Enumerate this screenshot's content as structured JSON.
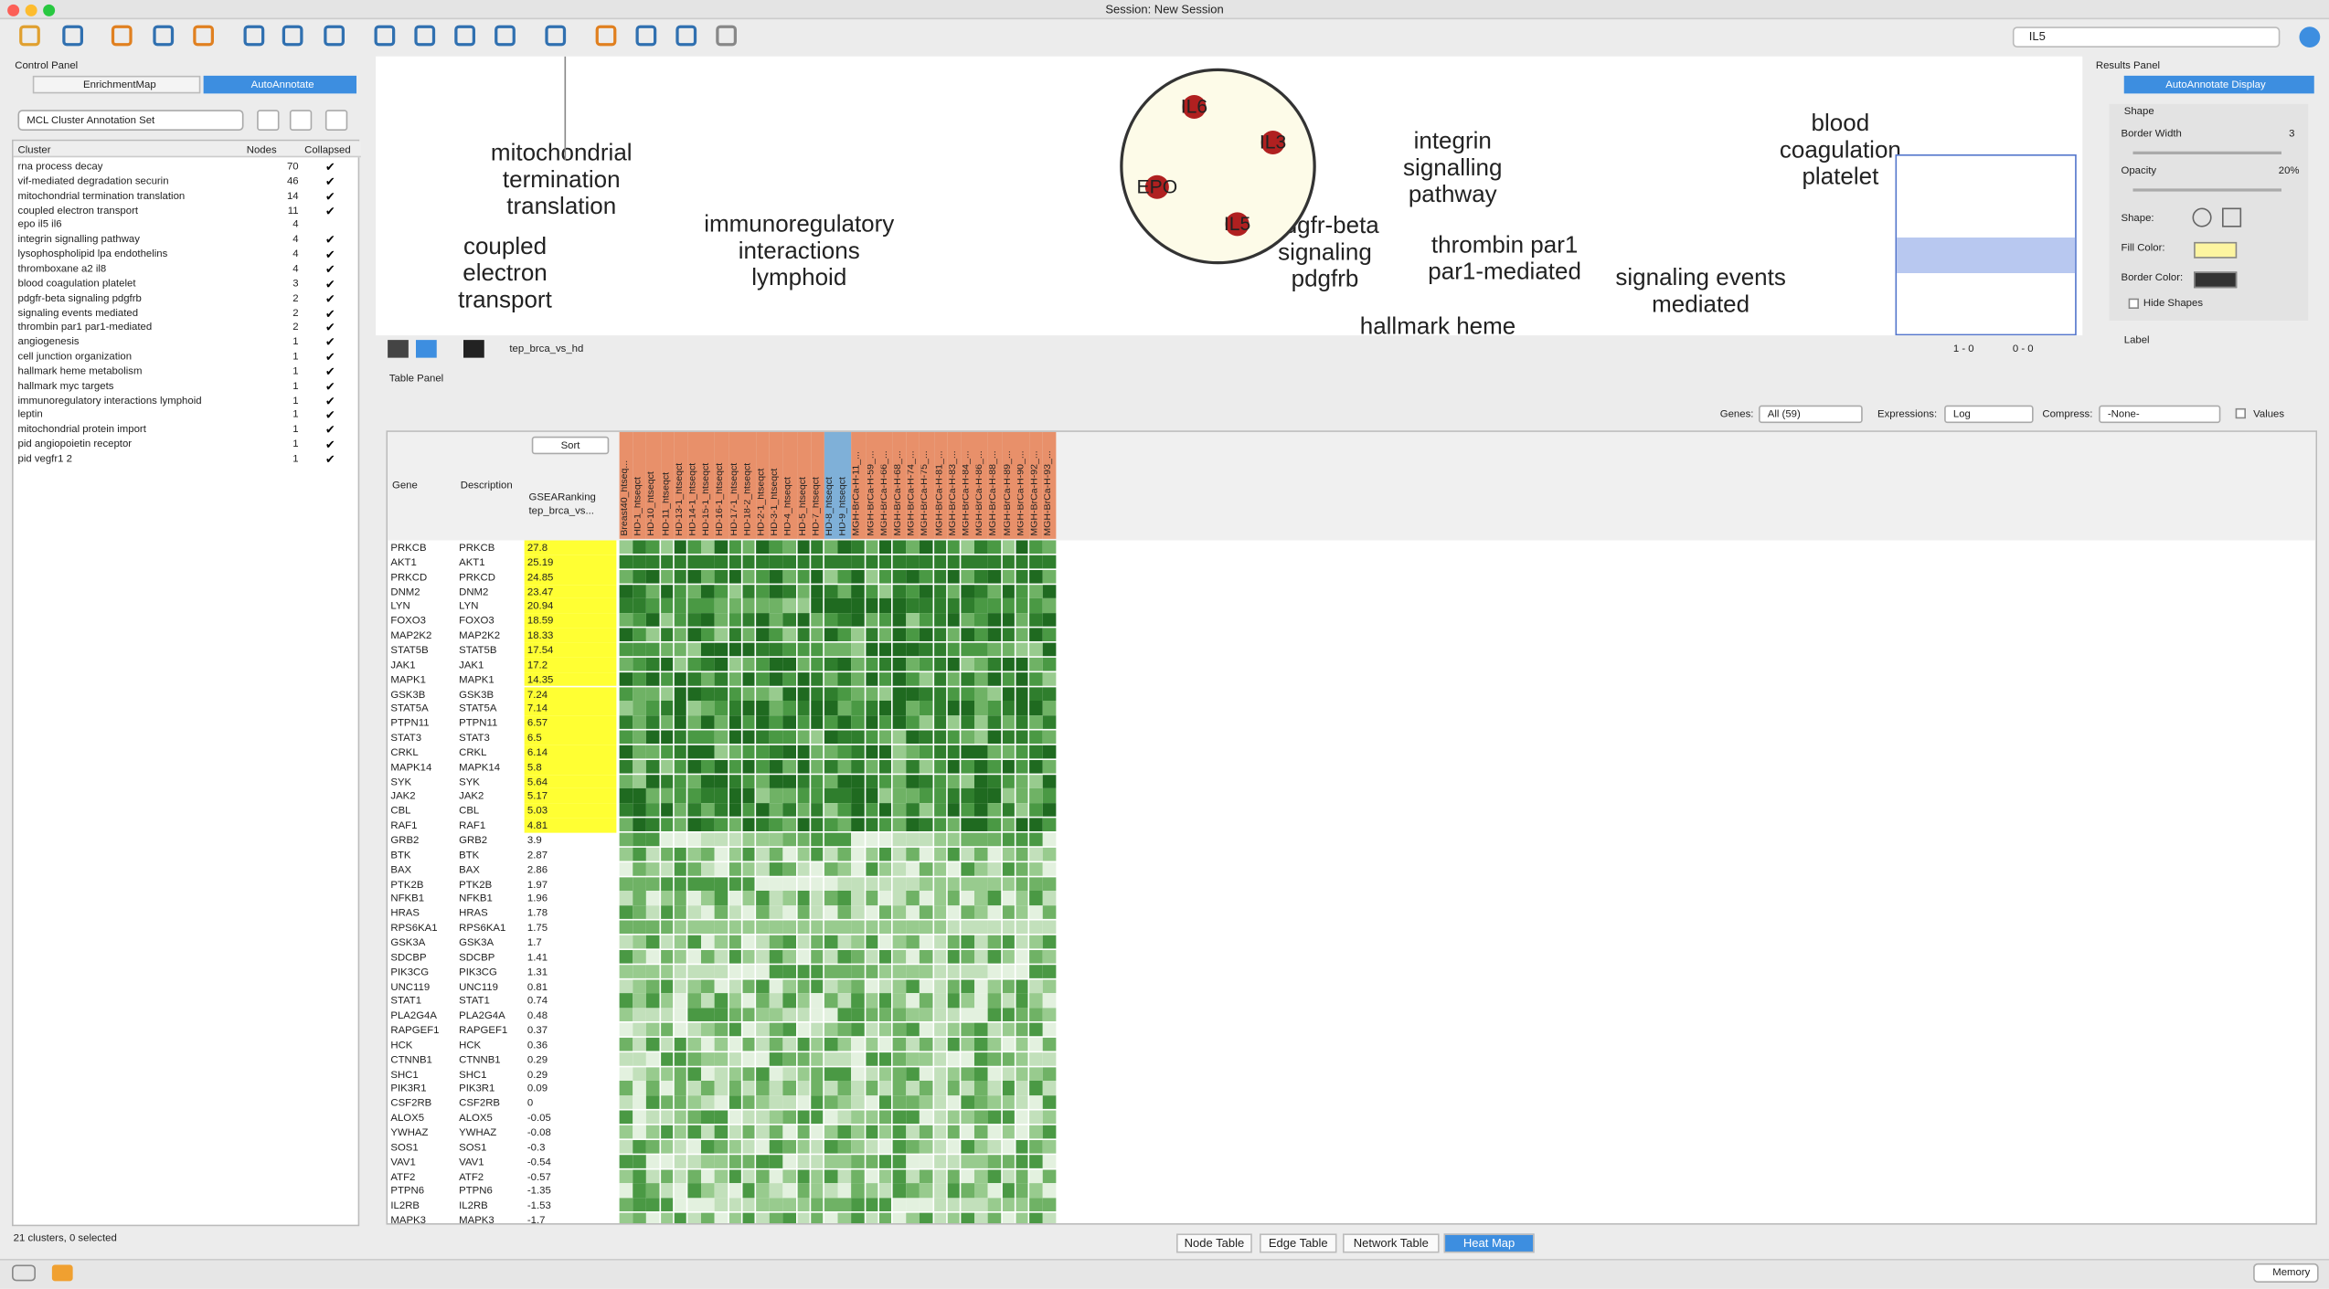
{
  "window_title": "Session: New Session",
  "search": "IL5",
  "control_panel": {
    "title": "Control Panel",
    "tabs": [
      "EnrichmentMap",
      "AutoAnnotate"
    ],
    "annotation_set": "MCL Cluster Annotation Set",
    "columns": [
      "Cluster",
      "Nodes",
      "Collapsed"
    ],
    "clusters": [
      {
        "name": "rna process decay",
        "nodes": 70,
        "collapsed": true
      },
      {
        "name": "vif-mediated degradation securin",
        "nodes": 46,
        "collapsed": true
      },
      {
        "name": "mitochondrial termination translation",
        "nodes": 14,
        "collapsed": true
      },
      {
        "name": "coupled electron transport",
        "nodes": 11,
        "collapsed": true
      },
      {
        "name": "epo il5 il6",
        "nodes": 4,
        "collapsed": false
      },
      {
        "name": "integrin signalling pathway",
        "nodes": 4,
        "collapsed": true
      },
      {
        "name": "lysophospholipid lpa endothelins",
        "nodes": 4,
        "collapsed": true
      },
      {
        "name": "thromboxane a2 il8",
        "nodes": 4,
        "collapsed": true
      },
      {
        "name": "blood coagulation platelet",
        "nodes": 3,
        "collapsed": true
      },
      {
        "name": "pdgfr-beta signaling pdgfrb",
        "nodes": 2,
        "collapsed": true
      },
      {
        "name": "signaling events mediated",
        "nodes": 2,
        "collapsed": true
      },
      {
        "name": "thrombin par1 par1-mediated",
        "nodes": 2,
        "collapsed": true
      },
      {
        "name": "angiogenesis",
        "nodes": 1,
        "collapsed": true
      },
      {
        "name": "cell junction organization",
        "nodes": 1,
        "collapsed": true
      },
      {
        "name": "hallmark heme metabolism",
        "nodes": 1,
        "collapsed": true
      },
      {
        "name": "hallmark myc targets",
        "nodes": 1,
        "collapsed": true
      },
      {
        "name": "immunoregulatory interactions lymphoid",
        "nodes": 1,
        "collapsed": true
      },
      {
        "name": "leptin",
        "nodes": 1,
        "collapsed": true
      },
      {
        "name": "mitochondrial protein import",
        "nodes": 1,
        "collapsed": true
      },
      {
        "name": "pid angiopoietin receptor",
        "nodes": 1,
        "collapsed": true
      },
      {
        "name": "pid vegfr1 2",
        "nodes": 1,
        "collapsed": true
      }
    ],
    "status": "21 clusters, 0 selected"
  },
  "network": {
    "name": "tep_brca_vs_hd",
    "selected_nodes": "1 - 0",
    "hidden": "0 - 0",
    "nodes": [
      "IL6",
      "IL3",
      "EPO",
      "IL5"
    ],
    "labels": [
      [
        "mitochondrial",
        "termination",
        "translation"
      ],
      [
        "coupled",
        "electron",
        "transport"
      ],
      [
        "immunoregulatory",
        "interactions",
        "lymphoid"
      ],
      [
        "integrin",
        "signalling",
        "pathway"
      ],
      [
        "pdgfr-beta",
        "signaling",
        "pdgfrb"
      ],
      [
        "thrombin par1",
        "par1-mediated"
      ],
      [
        "blood",
        "coagulation",
        "platelet"
      ],
      [
        "signaling events",
        "mediated"
      ],
      [
        "hallmark heme"
      ]
    ]
  },
  "results_panel": {
    "title": "Results Panel",
    "tab": "AutoAnnotate Display",
    "section": "Shape",
    "border_width_label": "Border Width",
    "border_width": "3",
    "opacity_label": "Opacity",
    "opacity": "20%",
    "shape_label": "Shape:",
    "fill_label": "Fill Color:",
    "border_color_label": "Border Color:",
    "hide_shapes": "Hide Shapes",
    "label_section": "Label"
  },
  "table_panel": {
    "title": "Table Panel",
    "genes_label": "Genes:",
    "genes": "All (59)",
    "expressions_label": "Expressions:",
    "expressions": "Log",
    "compress_label": "Compress:",
    "compress": "-None-",
    "values_label": "Values",
    "sort": "Sort",
    "columns": [
      "Gene",
      "Description",
      "GSEARanking tep_brca_vs..."
    ],
    "samples": [
      "Breast40_htseq...",
      "HD-1_htseqct",
      "HD-10_htseqct",
      "HD-11_htseqct",
      "HD-13-1_htseqct",
      "HD-14-1_htseqct",
      "HD-15-1_htseqct",
      "HD-16-1_htseqct",
      "HD-17-1_htseqct",
      "HD-18-2_htseqct",
      "HD-2-1_htseqct",
      "HD-3-1_htseqct",
      "HD-4_htseqct",
      "HD-5_htseqct",
      "HD-7_htseqct",
      "HD-8_htseqct",
      "HD-9_htseqct",
      "MGH-BrCa-H-11_...",
      "MGH-BrCa-H-59_...",
      "MGH-BrCa-H-66_...",
      "MGH-BrCa-H-68_...",
      "MGH-BrCa-H-74_...",
      "MGH-BrCa-H-75_...",
      "MGH-BrCa-H-81_...",
      "MGH-BrCa-H-83_...",
      "MGH-BrCa-H-84_...",
      "MGH-BrCa-H-86_...",
      "MGH-BrCa-H-88_...",
      "MGH-BrCa-H-89_...",
      "MGH-BrCa-H-90_...",
      "MGH-BrCa-H-92_...",
      "MGH-BrCa-H-93_..."
    ],
    "highlight_top": 20,
    "rows": [
      [
        "PRKCB",
        "PRKCB",
        27.8
      ],
      [
        "AKT1",
        "AKT1",
        25.19
      ],
      [
        "PRKCD",
        "PRKCD",
        24.85
      ],
      [
        "DNM2",
        "DNM2",
        23.47
      ],
      [
        "LYN",
        "LYN",
        20.94
      ],
      [
        "FOXO3",
        "FOXO3",
        18.59
      ],
      [
        "MAP2K2",
        "MAP2K2",
        18.33
      ],
      [
        "STAT5B",
        "STAT5B",
        17.54
      ],
      [
        "JAK1",
        "JAK1",
        17.2
      ],
      [
        "MAPK1",
        "MAPK1",
        14.35
      ],
      [
        "GSK3B",
        "GSK3B",
        7.24
      ],
      [
        "STAT5A",
        "STAT5A",
        7.14
      ],
      [
        "PTPN11",
        "PTPN11",
        6.57
      ],
      [
        "STAT3",
        "STAT3",
        6.5
      ],
      [
        "CRKL",
        "CRKL",
        6.14
      ],
      [
        "MAPK14",
        "MAPK14",
        5.8
      ],
      [
        "SYK",
        "SYK",
        5.64
      ],
      [
        "JAK2",
        "JAK2",
        5.17
      ],
      [
        "CBL",
        "CBL",
        5.03
      ],
      [
        "RAF1",
        "RAF1",
        4.81
      ],
      [
        "GRB2",
        "GRB2",
        3.9
      ],
      [
        "BTK",
        "BTK",
        2.87
      ],
      [
        "BAX",
        "BAX",
        2.86
      ],
      [
        "PTK2B",
        "PTK2B",
        1.97
      ],
      [
        "NFKB1",
        "NFKB1",
        1.96
      ],
      [
        "HRAS",
        "HRAS",
        1.78
      ],
      [
        "RPS6KA1",
        "RPS6KA1",
        1.75
      ],
      [
        "GSK3A",
        "GSK3A",
        1.7
      ],
      [
        "SDCBP",
        "SDCBP",
        1.41
      ],
      [
        "PIK3CG",
        "PIK3CG",
        1.31
      ],
      [
        "UNC119",
        "UNC119",
        0.81
      ],
      [
        "STAT1",
        "STAT1",
        0.74
      ],
      [
        "PLA2G4A",
        "PLA2G4A",
        0.48
      ],
      [
        "RAPGEF1",
        "RAPGEF1",
        0.37
      ],
      [
        "HCK",
        "HCK",
        0.36
      ],
      [
        "CTNNB1",
        "CTNNB1",
        0.29
      ],
      [
        "SHC1",
        "SHC1",
        0.29
      ],
      [
        "PIK3R1",
        "PIK3R1",
        0.09
      ],
      [
        "CSF2RB",
        "CSF2RB",
        0
      ],
      [
        "ALOX5",
        "ALOX5",
        -0.05
      ],
      [
        "YWHAZ",
        "YWHAZ",
        -0.08
      ],
      [
        "SOS1",
        "SOS1",
        -0.3
      ],
      [
        "VAV1",
        "VAV1",
        -0.54
      ],
      [
        "ATF2",
        "ATF2",
        -0.57
      ],
      [
        "PTPN6",
        "PTPN6",
        -1.35
      ],
      [
        "IL2RB",
        "IL2RB",
        -1.53
      ],
      [
        "MAPK3",
        "MAPK3",
        -1.7
      ]
    ]
  },
  "bottom_tabs": [
    "Node Table",
    "Edge Table",
    "Network Table",
    "Heat Map"
  ],
  "memory": "Memory"
}
